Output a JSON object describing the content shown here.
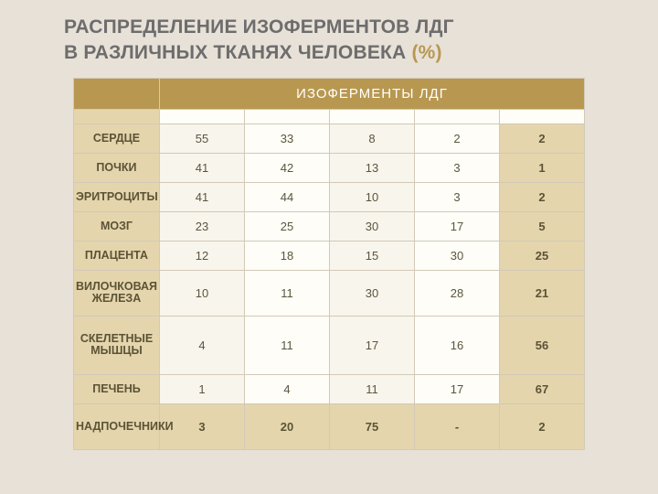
{
  "title": {
    "line1": "РАСПРЕДЕЛЕНИЕ ИЗОФЕРМЕНТОВ ЛДГ",
    "line2_a": "В РАЗЛИЧНЫХ ТКАНЯХ ЧЕЛОВЕКА ",
    "line2_b": "(%)"
  },
  "table": {
    "type": "table",
    "header_span": "ИЗОФЕРМЕНТЫ   ЛДГ",
    "columns_count": 5,
    "rows": [
      {
        "label": "СЕРДЦЕ",
        "vals": [
          "55",
          "33",
          "8",
          "2",
          "2"
        ]
      },
      {
        "label": "ПОЧКИ",
        "vals": [
          "41",
          "42",
          "13",
          "3",
          "1"
        ]
      },
      {
        "label": "ЭРИТРОЦИТЫ",
        "vals": [
          "41",
          "44",
          "10",
          "3",
          "2"
        ]
      },
      {
        "label": "МОЗГ",
        "vals": [
          "23",
          "25",
          "30",
          "17",
          "5"
        ]
      },
      {
        "label": "ПЛАЦЕНТА",
        "vals": [
          "12",
          "18",
          "15",
          "30",
          "25"
        ]
      },
      {
        "label": "ВИЛОЧКОВАЯ ЖЕЛЕЗА",
        "vals": [
          "10",
          "11",
          "30",
          "28",
          "21"
        ]
      },
      {
        "label": "СКЕЛЕТНЫЕ МЫШЦЫ",
        "vals": [
          "4",
          "11",
          "17",
          "16",
          "56"
        ]
      },
      {
        "label": "ПЕЧЕНЬ",
        "vals": [
          "1",
          "4",
          "11",
          "17",
          "67"
        ]
      },
      {
        "label": "НАДПОЧЕЧНИКИ",
        "vals": [
          "3",
          "20",
          "75",
          "-",
          "2"
        ]
      }
    ],
    "styling": {
      "header_bg": "#b89850",
      "header_text_color": "#ffffff",
      "row_label_bg": "#e4d5ad",
      "cell_bg_a": "#f8f5ec",
      "cell_bg_b": "#fffdf7",
      "last_col_bg": "#e4d5ad",
      "border_color": "#d2c9b8",
      "text_color": "#5b553f",
      "font_size_pt": 10,
      "header_font_size_pt": 11
    }
  },
  "page_bg": "#e8e1d8",
  "title_color": "#6d6d6d",
  "title_accent_color": "#b89850"
}
